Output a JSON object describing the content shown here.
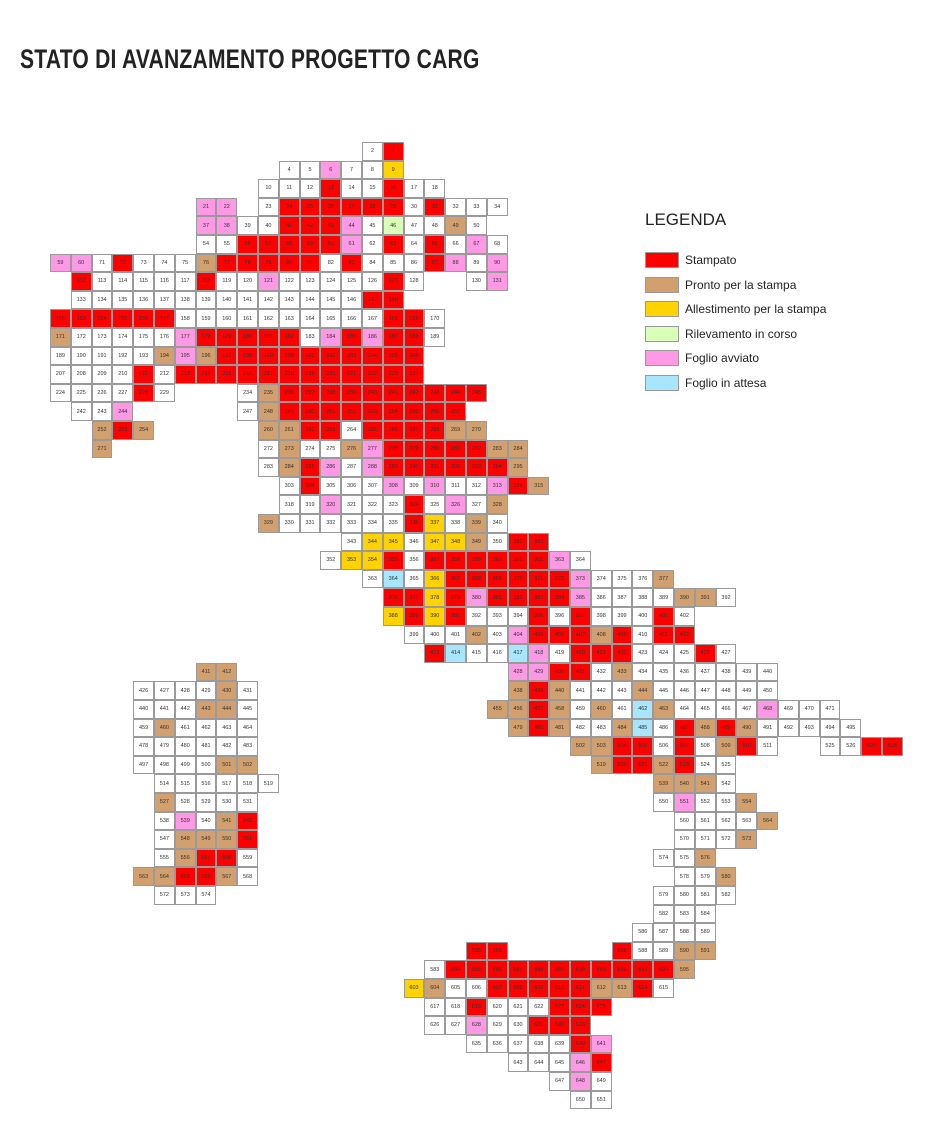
{
  "title": "STATO DI AVANZAMENTO PROGETTO CARG",
  "legend": {
    "title": "LEGENDA",
    "items": [
      {
        "code": "R",
        "label": "Stampato",
        "color": "#ff0000"
      },
      {
        "code": "T",
        "label": "Pronto per la stampa",
        "color": "#d2a06e"
      },
      {
        "code": "Y",
        "label": "Allestimento per la stampa",
        "color": "#ffd200"
      },
      {
        "code": "G",
        "label": "Rilevamento in corso",
        "color": "#d9ffb8"
      },
      {
        "code": "P",
        "label": "Foglio avviato",
        "color": "#ff99e6"
      },
      {
        "code": "B",
        "label": "Foglio in attesa",
        "color": "#a8e6ff"
      }
    ],
    "white_color": "#ffffff"
  },
  "sheets": [
    [
      {
        "first": 2,
        "status": "W"
      },
      {
        "first": 1,
        "status": "R"
      }
    ],
    [
      {
        "first": 4,
        "status": "WWPWWY"
      }
    ],
    [
      {
        "first": 10,
        "status": "WWWRWWRWW"
      }
    ],
    [
      {
        "first": 21,
        "status": "PP"
      },
      {
        "first": 23,
        "status": "WRRRRRRWRWWW"
      }
    ],
    [
      {
        "first": 37,
        "status": "PPWWRRRPWGWWTW"
      }
    ],
    [
      {
        "first": 54,
        "status": "WWRRRRRPWRWRWPW"
      }
    ],
    [
      {
        "first": 59,
        "status": "PP"
      },
      {
        "first": 71,
        "status": "WRWWWTRRRRRWRWWWRPWP"
      }
    ],
    [
      {
        "first": 112,
        "status": "RWWWWWRWWPWWWWWRW"
      },
      {
        "first": 130,
        "status": "WP"
      }
    ],
    [
      {
        "first": 133,
        "status": "WWWWWWWWWWWWWWRR"
      }
    ],
    [
      {
        "first": 152,
        "status": "RRRRRRWWWWWWWWWWRRW"
      }
    ],
    [
      {
        "first": 171,
        "status": "TWWWWWPRRRRRWPRPRRW"
      }
    ],
    [
      {
        "first": 189,
        "status": "WWWWWTPTRRRRRRRRRR"
      }
    ],
    [
      {
        "first": 207,
        "status": "WWWWRWRRRRRRRRRRRR"
      }
    ],
    [
      {
        "first": 224,
        "status": "WWWWRW"
      },
      {
        "first": 234,
        "status": "WTRRRRRRRRRR"
      }
    ],
    [
      {
        "first": 242,
        "status": "WWP"
      },
      {
        "first": 247,
        "status": "WTRRRRRRRRR"
      }
    ],
    [
      {
        "first": 252,
        "status": "TRT"
      },
      {
        "first": 260,
        "status": "TTRRWRRRRTT"
      }
    ],
    [
      {
        "first": 271,
        "status": "T"
      },
      {
        "first": 272,
        "status": "WTWWTPRRRRRTT"
      }
    ],
    [
      {
        "first": 283,
        "status": "WTRPWPRRRRRRT"
      }
    ],
    [
      {
        "first": 303,
        "status": "WRWWWPWPWWPRT"
      }
    ],
    [
      {
        "first": 318,
        "status": "WWPWWWRWPWT"
      }
    ],
    [
      {
        "first": 329,
        "status": "TWWWWWWRYWTW"
      }
    ],
    [
      {
        "first": 343,
        "status": "WYYWYYTWRR"
      }
    ],
    [
      {
        "first": 352,
        "status": "WYYRWRRRRRRPW"
      }
    ],
    [
      {
        "first": 363,
        "status": "WBWYRRRRRRPWWWT"
      }
    ],
    [
      {
        "first": 376,
        "status": "RRYRPRRRRPWWWWTTW"
      }
    ],
    [
      {
        "first": 388,
        "status": "YRYRWWWRWRWWWRW"
      }
    ],
    [
      {
        "first": 399,
        "status": "WWWTWPRRRTRWRR"
      }
    ],
    [
      {
        "first": 413,
        "status": "RBWWBPWRRRWWWRW"
      }
    ],
    [
      {
        "first": 411,
        "status": "TT"
      },
      {
        "first": 428,
        "status": "PPRRWTWWWWWWW"
      }
    ],
    [
      {
        "first": 426,
        "status": "WWWWTW"
      },
      {
        "first": 438,
        "status": "TRTWWWTWWWWWW"
      }
    ],
    [
      {
        "first": 440,
        "status": "WWWTTW"
      },
      {
        "first": 455,
        "status": "TTRTWTWBTWWWWPWWW"
      }
    ],
    [
      {
        "first": 459,
        "status": "WTWWWW"
      },
      {
        "first": 479,
        "status": "TRTWWTBWRTRTWWWWW"
      }
    ],
    [
      {
        "first": 478,
        "status": "WWWWWW"
      },
      {
        "first": 502,
        "status": "TTRRWRWTRW"
      },
      {
        "first": 525,
        "status": "WWRR"
      }
    ],
    [
      {
        "first": 497,
        "status": "WWWWTT"
      },
      {
        "first": 519,
        "status": "TRRTRWW"
      }
    ],
    [
      {
        "first": 514,
        "status": "WWWWWW"
      },
      {
        "first": 539,
        "status": "TTTW"
      }
    ],
    [
      {
        "first": 527,
        "status": "TWWWW"
      },
      {
        "first": 550,
        "status": "WPWWT"
      }
    ],
    [
      {
        "first": 538,
        "status": "WPWTR"
      },
      {
        "first": 560,
        "status": "WWWWT"
      }
    ],
    [
      {
        "first": 547,
        "status": "WTTTR"
      },
      {
        "first": 570,
        "status": "WWWT"
      }
    ],
    [
      {
        "first": 555,
        "status": "WTRRW"
      },
      {
        "first": 574,
        "status": "WWT"
      }
    ],
    [
      {
        "first": 563,
        "status": "TTRRTW"
      },
      {
        "first": 578,
        "status": "WWT"
      }
    ],
    [
      {
        "first": 572,
        "status": "WWW"
      },
      {
        "first": 579,
        "status": "WWWW"
      }
    ],
    [
      {
        "first": 582,
        "status": "WWW"
      }
    ],
    [
      {
        "first": 586,
        "status": "WWWW"
      }
    ],
    [
      {
        "first": 585,
        "status": "RR"
      },
      {
        "first": 598,
        "status": "R"
      },
      {
        "first": 588,
        "status": "WWTT"
      }
    ],
    [
      {
        "first": 583,
        "status": "WRRRRRRRRRRRT"
      }
    ],
    [
      {
        "first": 603,
        "status": "YTWWRRRRRTTRW"
      }
    ],
    [
      {
        "first": 617,
        "status": "WWRWWWRRR"
      }
    ],
    [
      {
        "first": 626,
        "status": "WWPWWRRR"
      }
    ],
    [
      {
        "first": 635,
        "status": "WWWWWRP"
      }
    ],
    [
      {
        "first": 643,
        "status": "WWWPR"
      }
    ],
    [
      {
        "first": 647,
        "status": "WPW"
      }
    ],
    [
      {
        "first": 650,
        "status": "WW"
      }
    ]
  ]
}
